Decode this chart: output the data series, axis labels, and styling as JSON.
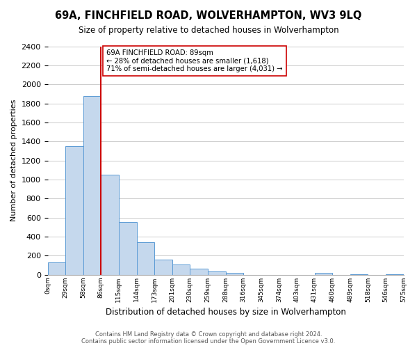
{
  "title": "69A, FINCHFIELD ROAD, WOLVERHAMPTON, WV3 9LQ",
  "subtitle": "Size of property relative to detached houses in Wolverhampton",
  "xlabel": "Distribution of detached houses by size in Wolverhampton",
  "ylabel": "Number of detached properties",
  "bar_values": [
    125,
    1350,
    1880,
    1050,
    550,
    340,
    160,
    105,
    60,
    30,
    20,
    0,
    0,
    0,
    0,
    15,
    0,
    5,
    0,
    5
  ],
  "bin_labels": [
    "0sqm",
    "29sqm",
    "58sqm",
    "86sqm",
    "115sqm",
    "144sqm",
    "173sqm",
    "201sqm",
    "230sqm",
    "259sqm",
    "288sqm",
    "316sqm",
    "345sqm",
    "374sqm",
    "403sqm",
    "431sqm",
    "460sqm",
    "489sqm",
    "518sqm",
    "546sqm",
    "575sqm"
  ],
  "bar_color": "#c5d8ed",
  "bar_edge_color": "#5b9bd5",
  "vline_x": 3,
  "vline_color": "#cc0000",
  "annotation_title": "69A FINCHFIELD ROAD: 89sqm",
  "annotation_line1": "← 28% of detached houses are smaller (1,618)",
  "annotation_line2": "71% of semi-detached houses are larger (4,031) →",
  "annotation_box_color": "#ffffff",
  "annotation_box_edge": "#cc0000",
  "ylim": [
    0,
    2400
  ],
  "yticks": [
    0,
    200,
    400,
    600,
    800,
    1000,
    1200,
    1400,
    1600,
    1800,
    2000,
    2200,
    2400
  ],
  "footer_line1": "Contains HM Land Registry data © Crown copyright and database right 2024.",
  "footer_line2": "Contains public sector information licensed under the Open Government Licence v3.0.",
  "bg_color": "#ffffff",
  "grid_color": "#cccccc"
}
